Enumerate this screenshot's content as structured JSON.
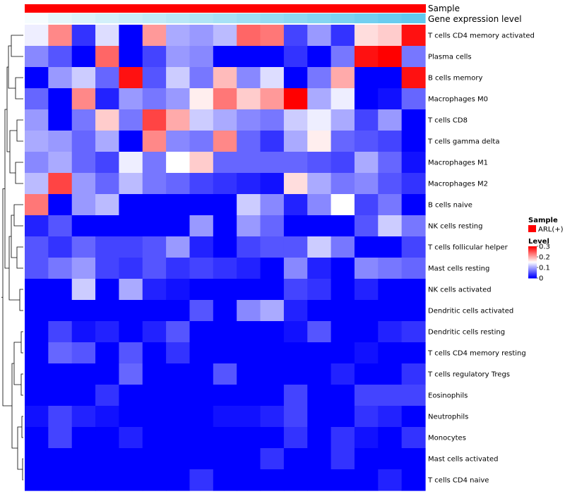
{
  "chart_data": {
    "type": "heatmap",
    "annotation_bars": [
      {
        "name": "Sample",
        "color": "#ff0000"
      },
      {
        "name": "Gene expression level",
        "colors": [
          "#ffffff",
          "#4fc3ec"
        ]
      }
    ],
    "rows": [
      "T cells CD4 memory activated",
      "Plasma cells",
      "B cells memory",
      "Macrophages M0",
      "T cells CD8",
      "T cells gamma delta",
      "Macrophages M1",
      "Macrophages M2",
      "B cells naive",
      "NK cells resting",
      "T cells follicular helper",
      "Mast cells resting",
      "NK cells activated",
      "Dendritic cells activated",
      "Dendritic cells resting",
      "T cells CD4 memory resting",
      "T cells regulatory  Tregs",
      "Eosinophils",
      "Neutrophils",
      "Monocytes",
      "Mast cells activated",
      "T cells CD4 naive"
    ],
    "values": [
      [
        0.14,
        0.22,
        0.03,
        0.13,
        0.0,
        0.21,
        0.1,
        0.09,
        0.11,
        0.24,
        0.23,
        0.04,
        0.09,
        0.03,
        0.17,
        0.18,
        0.29
      ],
      [
        0.08,
        0.05,
        0.0,
        0.24,
        0.0,
        0.04,
        0.09,
        0.08,
        0.0,
        0.0,
        0.0,
        0.03,
        0.0,
        0.07,
        0.29,
        0.3,
        0.07
      ],
      [
        0.0,
        0.09,
        0.12,
        0.06,
        0.29,
        0.05,
        0.12,
        0.07,
        0.19,
        0.08,
        0.13,
        0.0,
        0.07,
        0.2,
        0.0,
        0.0,
        0.29
      ],
      [
        0.06,
        0.0,
        0.22,
        0.02,
        0.09,
        0.07,
        0.09,
        0.16,
        0.23,
        0.18,
        0.21,
        0.3,
        0.1,
        0.14,
        0.0,
        0.01,
        0.06
      ],
      [
        0.09,
        0.0,
        0.07,
        0.18,
        0.07,
        0.26,
        0.2,
        0.12,
        0.1,
        0.08,
        0.07,
        0.12,
        0.14,
        0.1,
        0.04,
        0.09,
        0.0
      ],
      [
        0.1,
        0.09,
        0.06,
        0.1,
        0.0,
        0.22,
        0.08,
        0.07,
        0.22,
        0.06,
        0.03,
        0.1,
        0.16,
        0.06,
        0.05,
        0.04,
        0.0
      ],
      [
        0.08,
        0.1,
        0.06,
        0.04,
        0.14,
        0.07,
        0.15,
        0.18,
        0.06,
        0.06,
        0.06,
        0.06,
        0.05,
        0.04,
        0.1,
        0.06,
        0.01
      ],
      [
        0.11,
        0.26,
        0.09,
        0.06,
        0.11,
        0.07,
        0.06,
        0.04,
        0.03,
        0.02,
        0.01,
        0.17,
        0.1,
        0.07,
        0.08,
        0.05,
        0.03
      ],
      [
        0.23,
        0.0,
        0.09,
        0.11,
        0.0,
        0.0,
        0.0,
        0.0,
        0.0,
        0.12,
        0.08,
        0.02,
        0.08,
        0.15,
        0.04,
        0.07,
        0.0
      ],
      [
        0.02,
        0.05,
        0.0,
        0.0,
        0.0,
        0.0,
        0.0,
        0.09,
        0.0,
        0.09,
        0.06,
        0.0,
        0.0,
        0.0,
        0.05,
        0.12,
        0.07
      ],
      [
        0.05,
        0.03,
        0.06,
        0.04,
        0.04,
        0.05,
        0.09,
        0.02,
        0.0,
        0.04,
        0.05,
        0.05,
        0.12,
        0.07,
        0.0,
        0.0,
        0.04
      ],
      [
        0.05,
        0.07,
        0.09,
        0.04,
        0.03,
        0.05,
        0.03,
        0.04,
        0.03,
        0.02,
        0.0,
        0.08,
        0.02,
        0.0,
        0.08,
        0.07,
        0.06
      ],
      [
        0.0,
        0.0,
        0.12,
        0.0,
        0.1,
        0.02,
        0.01,
        0.0,
        0.0,
        0.0,
        0.0,
        0.04,
        0.03,
        0.0,
        0.02,
        0.0,
        0.0
      ],
      [
        0.0,
        0.0,
        0.0,
        0.0,
        0.0,
        0.0,
        0.0,
        0.05,
        0.0,
        0.08,
        0.1,
        0.02,
        0.0,
        0.0,
        0.0,
        0.0,
        0.0
      ],
      [
        0.0,
        0.04,
        0.01,
        0.02,
        0.0,
        0.02,
        0.05,
        0.0,
        0.0,
        0.0,
        0.0,
        0.01,
        0.05,
        0.0,
        0.0,
        0.02,
        0.03
      ],
      [
        0.0,
        0.06,
        0.05,
        0.0,
        0.05,
        0.0,
        0.03,
        0.0,
        0.0,
        0.0,
        0.0,
        0.0,
        0.0,
        0.0,
        0.01,
        0.0,
        0.0
      ],
      [
        0.0,
        0.0,
        0.0,
        0.0,
        0.06,
        0.0,
        0.0,
        0.0,
        0.05,
        0.0,
        0.0,
        0.0,
        0.0,
        0.02,
        0.0,
        0.0,
        0.03
      ],
      [
        0.0,
        0.0,
        0.0,
        0.03,
        0.0,
        0.0,
        0.0,
        0.0,
        0.0,
        0.0,
        0.0,
        0.04,
        0.0,
        0.0,
        0.04,
        0.04,
        0.04
      ],
      [
        0.01,
        0.04,
        0.02,
        0.01,
        0.0,
        0.0,
        0.0,
        0.0,
        0.01,
        0.01,
        0.02,
        0.04,
        0.0,
        0.0,
        0.03,
        0.02,
        0.0
      ],
      [
        0.0,
        0.04,
        0.0,
        0.0,
        0.02,
        0.0,
        0.0,
        0.0,
        0.0,
        0.0,
        0.0,
        0.03,
        0.0,
        0.03,
        0.01,
        0.0,
        0.03
      ],
      [
        0.0,
        0.0,
        0.0,
        0.0,
        0.0,
        0.0,
        0.0,
        0.0,
        0.0,
        0.0,
        0.03,
        0.0,
        0.0,
        0.03,
        0.0,
        0.0,
        0.0
      ],
      [
        0.0,
        0.0,
        0.0,
        0.0,
        0.0,
        0.0,
        0.0,
        0.03,
        0.0,
        0.0,
        0.0,
        0.0,
        0.0,
        0.0,
        0.0,
        0.02,
        0.0
      ]
    ],
    "color_scale": {
      "min": 0,
      "max": 0.3,
      "low_color": "#0000ff",
      "mid_color": "#ffffff",
      "high_color": "#ff0000"
    },
    "legend": {
      "sample_title": "Sample",
      "sample_entry": "ARL(+)",
      "sample_color": "#ff0000",
      "level_title": "Level",
      "ticks": [
        "0.3",
        "0.2",
        "0.1",
        "0"
      ],
      "tick_values": [
        0.3,
        0.2,
        0.1,
        0
      ]
    },
    "gene_expression_gradient": [
      0.05,
      0.15,
      0.2,
      0.25,
      0.3,
      0.35,
      0.4,
      0.45,
      0.5,
      0.55,
      0.6,
      0.65,
      0.7,
      0.75,
      0.8,
      0.85,
      0.9
    ]
  }
}
